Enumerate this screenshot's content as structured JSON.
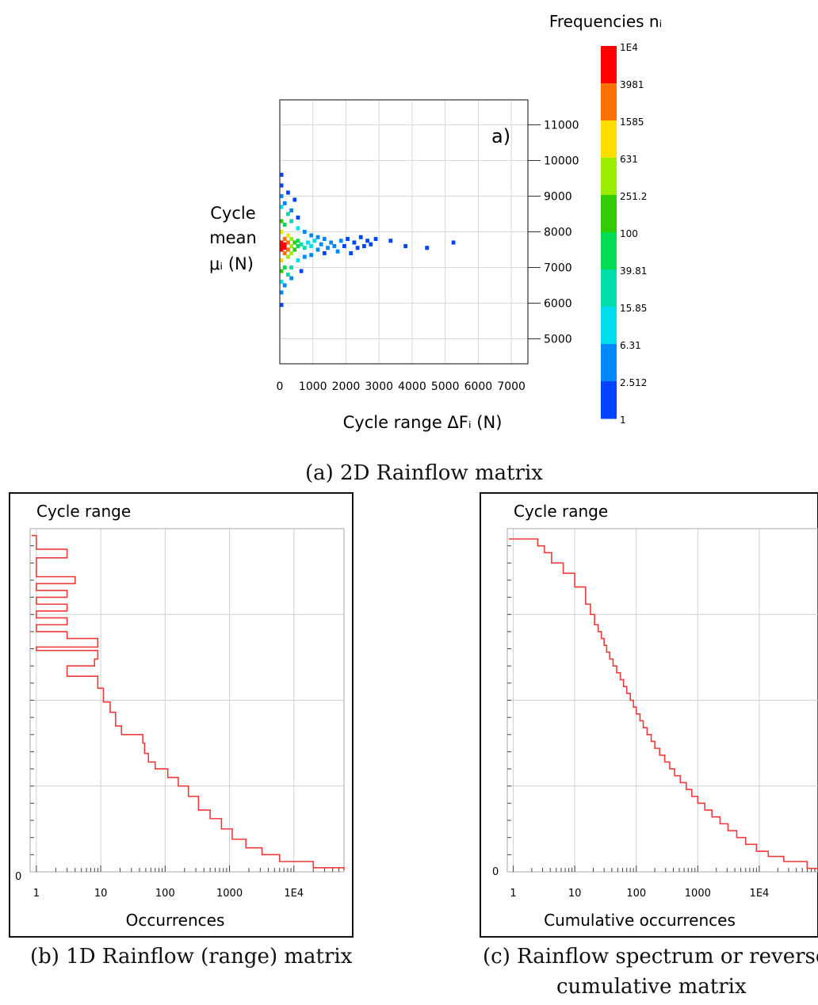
{
  "captions": {
    "a": "(a) 2D Rainflow matrix",
    "b": "(b) 1D Rainflow (range) matrix",
    "c_line1": "(c) Rainflow spectrum or reverse",
    "c_line2": "cumulative matrix"
  },
  "chart_data": [
    {
      "type": "heatmap",
      "panel_label": "a)",
      "xlabel": "Cycle range ΔFᵢ (N)",
      "ylabel": [
        "Cycle",
        "mean",
        "μᵢ (N)"
      ],
      "xlim": [
        0,
        7500
      ],
      "ylim": [
        4300,
        11700
      ],
      "x_ticks": [
        "0",
        "1000",
        "2000",
        "3000",
        "4000",
        "5000",
        "6000",
        "7000"
      ],
      "y_ticks": [
        "5000",
        "6000",
        "7000",
        "8000",
        "9000",
        "10000",
        "11000"
      ],
      "colorbar": {
        "title": "Frequencies nᵢ",
        "labels": [
          "1E4",
          "3981",
          "1585",
          "631",
          "251.2",
          "100",
          "39.81",
          "15.85",
          "6.31",
          "2.512",
          "1"
        ],
        "colors": [
          "#ff0000",
          "#ff7000",
          "#ffdd00",
          "#99ee00",
          "#33cc00",
          "#00dd55",
          "#00ddaa",
          "#00ddee",
          "#0088ff",
          "#0044ff",
          "#0000ff"
        ]
      },
      "points": [
        [
          50,
          7600,
          10000
        ],
        [
          50,
          7700,
          8000
        ],
        [
          50,
          7500,
          7000
        ],
        [
          150,
          7650,
          5000
        ],
        [
          150,
          7550,
          4000
        ],
        [
          150,
          7800,
          2500
        ],
        [
          150,
          7400,
          2000
        ],
        [
          250,
          7700,
          1800
        ],
        [
          250,
          7500,
          1600
        ],
        [
          250,
          7900,
          700
        ],
        [
          250,
          7300,
          600
        ],
        [
          50,
          8000,
          900
        ],
        [
          50,
          7200,
          800
        ],
        [
          350,
          7600,
          400
        ],
        [
          350,
          7800,
          300
        ],
        [
          350,
          7400,
          280
        ],
        [
          50,
          8300,
          120
        ],
        [
          50,
          6900,
          110
        ],
        [
          150,
          8200,
          90
        ],
        [
          150,
          7000,
          80
        ],
        [
          450,
          7700,
          120
        ],
        [
          450,
          7500,
          110
        ],
        [
          550,
          7600,
          50
        ],
        [
          550,
          7750,
          40
        ],
        [
          650,
          7650,
          25
        ],
        [
          750,
          7550,
          20
        ],
        [
          850,
          7700,
          12
        ],
        [
          950,
          7600,
          10
        ],
        [
          1050,
          7750,
          8
        ],
        [
          1150,
          7500,
          6
        ],
        [
          1250,
          7650,
          5
        ],
        [
          1350,
          7800,
          4
        ],
        [
          1450,
          7550,
          5
        ],
        [
          1550,
          7700,
          4
        ],
        [
          1650,
          7600,
          3
        ],
        [
          1750,
          7450,
          3
        ],
        [
          1850,
          7750,
          3
        ],
        [
          1950,
          7600,
          2
        ],
        [
          2050,
          7800,
          2
        ],
        [
          2150,
          7400,
          2
        ],
        [
          2250,
          7700,
          2
        ],
        [
          2350,
          7550,
          2
        ],
        [
          2450,
          7850,
          1
        ],
        [
          2550,
          7600,
          1
        ],
        [
          2650,
          7750,
          1
        ],
        [
          2750,
          7650,
          1
        ],
        [
          2900,
          7800,
          1
        ],
        [
          3350,
          7750,
          1
        ],
        [
          3800,
          7600,
          1
        ],
        [
          4450,
          7550,
          1
        ],
        [
          5250,
          7700,
          1
        ],
        [
          50,
          8700,
          15
        ],
        [
          50,
          9000,
          5
        ],
        [
          50,
          9300,
          2
        ],
        [
          50,
          9600,
          1
        ],
        [
          50,
          6600,
          10
        ],
        [
          50,
          6300,
          3
        ],
        [
          50,
          5950,
          1
        ],
        [
          250,
          8500,
          20
        ],
        [
          250,
          6800,
          18
        ],
        [
          350,
          8300,
          25
        ],
        [
          350,
          7000,
          22
        ],
        [
          550,
          8100,
          12
        ],
        [
          550,
          7200,
          10
        ],
        [
          750,
          8000,
          6
        ],
        [
          750,
          7300,
          5
        ],
        [
          950,
          7900,
          4
        ],
        [
          950,
          7350,
          3
        ],
        [
          1150,
          7850,
          3
        ],
        [
          1350,
          7400,
          2
        ],
        [
          150,
          8800,
          4
        ],
        [
          150,
          6500,
          4
        ],
        [
          350,
          8600,
          3
        ],
        [
          350,
          6700,
          3
        ],
        [
          250,
          9100,
          1
        ],
        [
          450,
          8900,
          1
        ],
        [
          550,
          8400,
          2
        ],
        [
          650,
          6900,
          2
        ]
      ]
    },
    {
      "type": "line",
      "panel_title": "Cycle range",
      "xlabel": "Occurrences",
      "x_scale": "log",
      "xlim": [
        0.8,
        60000
      ],
      "x_ticks": [
        "1",
        "10",
        "100",
        "1000",
        "1E4"
      ],
      "y_tick": "0",
      "y_range_fraction": [
        0,
        1
      ],
      "line_color": "#f03a3a",
      "series": [
        {
          "x": [
            1,
            1,
            1,
            1,
            3,
            3,
            1,
            1,
            4,
            4,
            1,
            1,
            3,
            3,
            1,
            1,
            3,
            3,
            1,
            1,
            3,
            3,
            1,
            1,
            3,
            3,
            9,
            9,
            1,
            1,
            9,
            9,
            8,
            8,
            3,
            3,
            9,
            9,
            11,
            11,
            14,
            14,
            17,
            17,
            21,
            21,
            45,
            45,
            48,
            48,
            55,
            55,
            70,
            70,
            110,
            110,
            160,
            160,
            230,
            230,
            330,
            330,
            500,
            500,
            750,
            750,
            1100,
            1100,
            1800,
            1800,
            3200,
            3200,
            6000,
            6000,
            20000,
            20000,
            60000
          ],
          "y": [
            0.98,
            0.965,
            0.955,
            0.94,
            0.93,
            0.915,
            0.9,
            0.86,
            0.85,
            0.84,
            0.83,
            0.82,
            0.81,
            0.8,
            0.79,
            0.78,
            0.77,
            0.76,
            0.75,
            0.74,
            0.73,
            0.72,
            0.71,
            0.7,
            0.69,
            0.68,
            0.66,
            0.655,
            0.65,
            0.645,
            0.64,
            0.62,
            0.61,
            0.6,
            0.59,
            0.57,
            0.555,
            0.535,
            0.515,
            0.495,
            0.48,
            0.465,
            0.445,
            0.425,
            0.415,
            0.4,
            0.39,
            0.375,
            0.36,
            0.345,
            0.33,
            0.32,
            0.31,
            0.3,
            0.29,
            0.275,
            0.265,
            0.25,
            0.235,
            0.22,
            0.2,
            0.18,
            0.165,
            0.155,
            0.14,
            0.125,
            0.11,
            0.095,
            0.085,
            0.07,
            0.06,
            0.05,
            0.04,
            0.03,
            0.02,
            0.012,
            0.005
          ]
        }
      ]
    },
    {
      "type": "line",
      "panel_title": "Cycle range",
      "xlabel": "Cumulative occurrences",
      "x_scale": "log",
      "xlim": [
        0.8,
        90000
      ],
      "x_ticks": [
        "1",
        "10",
        "100",
        "1000",
        "1E4"
      ],
      "y_tick": "0",
      "y_range_fraction": [
        0,
        1
      ],
      "line_color": "#f03a3a",
      "series": [
        {
          "x": [
            1,
            2.5,
            3.2,
            4.2,
            6.5,
            10,
            15,
            18,
            21,
            24,
            27,
            30,
            33,
            37,
            42,
            48,
            55,
            62,
            70,
            80,
            90,
            100,
            115,
            130,
            150,
            175,
            200,
            240,
            290,
            350,
            420,
            520,
            650,
            800,
            1000,
            1300,
            1700,
            2300,
            3100,
            4300,
            6000,
            9000,
            14000,
            25000,
            60000,
            90000
          ],
          "y": [
            0.97,
            0.95,
            0.93,
            0.9,
            0.87,
            0.83,
            0.78,
            0.75,
            0.72,
            0.7,
            0.68,
            0.66,
            0.64,
            0.62,
            0.6,
            0.58,
            0.56,
            0.54,
            0.52,
            0.5,
            0.48,
            0.46,
            0.44,
            0.42,
            0.4,
            0.38,
            0.36,
            0.34,
            0.32,
            0.3,
            0.28,
            0.26,
            0.24,
            0.22,
            0.2,
            0.18,
            0.16,
            0.14,
            0.12,
            0.1,
            0.08,
            0.06,
            0.045,
            0.03,
            0.01,
            0.005
          ]
        }
      ]
    }
  ]
}
